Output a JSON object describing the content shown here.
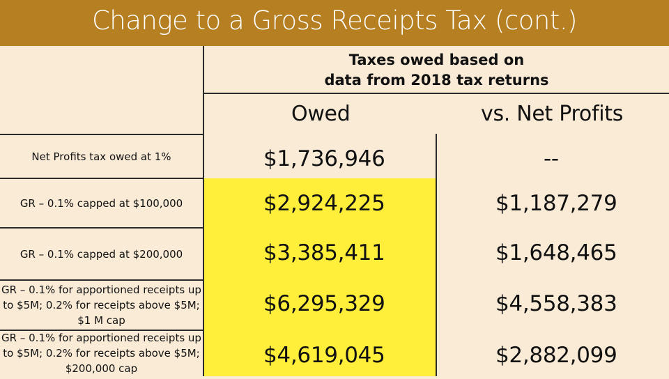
{
  "slide": {
    "title": "Change to a Gross Receipts Tax (cont.)"
  },
  "table": {
    "group_header": {
      "line1": "Taxes owed based on",
      "line2": "data from 2018 tax returns"
    },
    "columns": {
      "owed": "Owed",
      "vs_net_profits": "vs. Net Profits"
    },
    "rows": [
      {
        "label": "Net Profits tax owed at 1%",
        "owed": "$1,736,946",
        "vs": "--"
      },
      {
        "label": "GR – 0.1% capped at $100,000",
        "owed": "$2,924,225",
        "vs": "$1,187,279"
      },
      {
        "label": "GR – 0.1% capped at $200,000",
        "owed": "$3,385,411",
        "vs": "$1,648,465"
      },
      {
        "label": "GR – 0.1% for apportioned receipts up to $5M; 0.2% for receipts above $5M; $1 M cap",
        "owed": "$6,295,329",
        "vs": "$4,558,383"
      },
      {
        "label": "GR – 0.1% for apportioned receipts up to $5M; 0.2% for receipts above $5M; $200,000 cap",
        "owed": "$4,619,045",
        "vs": "$2,882,099"
      }
    ]
  },
  "colors": {
    "title_bar": "#b57f22",
    "background": "#faebd6",
    "highlight": "#ffef3a"
  }
}
